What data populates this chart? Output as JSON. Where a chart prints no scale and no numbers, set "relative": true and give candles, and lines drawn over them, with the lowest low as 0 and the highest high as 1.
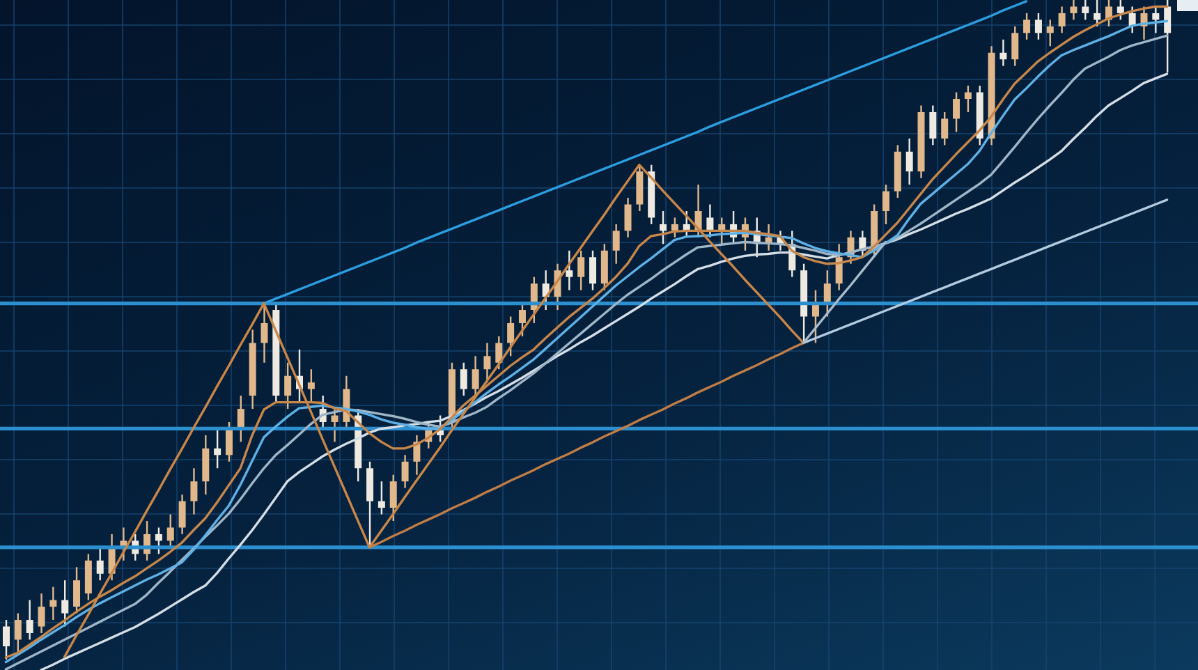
{
  "chart_data": {
    "type": "candlestick",
    "relative": true,
    "tick_labels": false,
    "grid": true,
    "marker": "none",
    "categories": [
      null,
      null,
      null,
      null,
      null,
      null,
      null,
      null,
      null,
      null,
      null,
      null,
      null,
      null,
      null,
      null,
      null,
      null,
      null,
      null,
      null,
      null,
      null,
      null,
      null,
      null,
      null,
      null,
      null,
      null,
      null,
      null,
      null,
      null,
      null,
      null,
      null,
      null,
      null,
      null,
      null,
      null,
      null,
      null,
      null,
      null,
      null,
      null,
      null,
      null,
      null,
      null,
      null,
      null,
      null,
      null,
      null,
      null,
      null,
      null,
      null,
      null,
      null,
      null,
      null,
      null,
      null,
      null,
      null,
      null,
      null,
      null,
      null,
      null,
      null,
      null,
      null,
      null,
      null,
      null,
      null,
      null,
      null,
      null,
      null,
      null,
      null,
      null,
      null,
      null,
      null,
      null,
      null,
      null,
      null,
      null,
      null,
      null,
      null,
      null
    ],
    "ohlc": [
      [
        0.05,
        0.06,
        0.0,
        0.02
      ],
      [
        0.03,
        0.07,
        0.01,
        0.06
      ],
      [
        0.06,
        0.09,
        0.03,
        0.04
      ],
      [
        0.05,
        0.1,
        0.04,
        0.08
      ],
      [
        0.08,
        0.11,
        0.06,
        0.09
      ],
      [
        0.09,
        0.12,
        0.05,
        0.07
      ],
      [
        0.08,
        0.14,
        0.07,
        0.12
      ],
      [
        0.1,
        0.16,
        0.09,
        0.15
      ],
      [
        0.15,
        0.17,
        0.12,
        0.13
      ],
      [
        0.13,
        0.19,
        0.12,
        0.17
      ],
      [
        0.17,
        0.2,
        0.15,
        0.18
      ],
      [
        0.18,
        0.19,
        0.15,
        0.16
      ],
      [
        0.16,
        0.21,
        0.15,
        0.19
      ],
      [
        0.19,
        0.2,
        0.16,
        0.18
      ],
      [
        0.18,
        0.22,
        0.17,
        0.2
      ],
      [
        0.2,
        0.25,
        0.19,
        0.24
      ],
      [
        0.24,
        0.29,
        0.22,
        0.27
      ],
      [
        0.27,
        0.34,
        0.25,
        0.32
      ],
      [
        0.32,
        0.35,
        0.29,
        0.31
      ],
      [
        0.31,
        0.36,
        0.3,
        0.35
      ],
      [
        0.35,
        0.4,
        0.33,
        0.38
      ],
      [
        0.4,
        0.5,
        0.38,
        0.48
      ],
      [
        0.48,
        0.54,
        0.45,
        0.51
      ],
      [
        0.53,
        0.54,
        0.39,
        0.4
      ],
      [
        0.4,
        0.45,
        0.38,
        0.43
      ],
      [
        0.43,
        0.47,
        0.39,
        0.41
      ],
      [
        0.41,
        0.44,
        0.39,
        0.42
      ],
      [
        0.38,
        0.4,
        0.35,
        0.36
      ],
      [
        0.36,
        0.38,
        0.33,
        0.37
      ],
      [
        0.36,
        0.43,
        0.35,
        0.41
      ],
      [
        0.37,
        0.38,
        0.27,
        0.29
      ],
      [
        0.29,
        0.3,
        0.17,
        0.24
      ],
      [
        0.24,
        0.27,
        0.22,
        0.23
      ],
      [
        0.23,
        0.28,
        0.21,
        0.27
      ],
      [
        0.27,
        0.31,
        0.26,
        0.3
      ],
      [
        0.3,
        0.34,
        0.28,
        0.33
      ],
      [
        0.33,
        0.36,
        0.32,
        0.35
      ],
      [
        0.35,
        0.37,
        0.33,
        0.34
      ],
      [
        0.36,
        0.45,
        0.35,
        0.44
      ],
      [
        0.44,
        0.45,
        0.4,
        0.41
      ],
      [
        0.41,
        0.46,
        0.4,
        0.44
      ],
      [
        0.44,
        0.48,
        0.42,
        0.46
      ],
      [
        0.45,
        0.49,
        0.44,
        0.48
      ],
      [
        0.48,
        0.52,
        0.46,
        0.51
      ],
      [
        0.51,
        0.54,
        0.49,
        0.53
      ],
      [
        0.53,
        0.58,
        0.51,
        0.57
      ],
      [
        0.57,
        0.59,
        0.53,
        0.55
      ],
      [
        0.55,
        0.6,
        0.53,
        0.59
      ],
      [
        0.59,
        0.62,
        0.56,
        0.58
      ],
      [
        0.58,
        0.62,
        0.56,
        0.61
      ],
      [
        0.61,
        0.62,
        0.56,
        0.57
      ],
      [
        0.57,
        0.63,
        0.56,
        0.62
      ],
      [
        0.62,
        0.66,
        0.6,
        0.65
      ],
      [
        0.65,
        0.7,
        0.64,
        0.69
      ],
      [
        0.69,
        0.75,
        0.68,
        0.74
      ],
      [
        0.74,
        0.75,
        0.66,
        0.67
      ],
      [
        0.66,
        0.68,
        0.63,
        0.65
      ],
      [
        0.65,
        0.67,
        0.64,
        0.66
      ],
      [
        0.66,
        0.68,
        0.64,
        0.65
      ],
      [
        0.65,
        0.72,
        0.64,
        0.68
      ],
      [
        0.67,
        0.69,
        0.64,
        0.65
      ],
      [
        0.65,
        0.67,
        0.63,
        0.66
      ],
      [
        0.66,
        0.68,
        0.63,
        0.64
      ],
      [
        0.64,
        0.67,
        0.62,
        0.66
      ],
      [
        0.65,
        0.67,
        0.61,
        0.63
      ],
      [
        0.63,
        0.66,
        0.62,
        0.64
      ],
      [
        0.64,
        0.65,
        0.62,
        0.63
      ],
      [
        0.63,
        0.65,
        0.58,
        0.59
      ],
      [
        0.59,
        0.6,
        0.48,
        0.52
      ],
      [
        0.52,
        0.56,
        0.48,
        0.54
      ],
      [
        0.54,
        0.59,
        0.52,
        0.57
      ],
      [
        0.57,
        0.63,
        0.56,
        0.61
      ],
      [
        0.61,
        0.65,
        0.6,
        0.64
      ],
      [
        0.64,
        0.65,
        0.61,
        0.62
      ],
      [
        0.62,
        0.69,
        0.61,
        0.68
      ],
      [
        0.68,
        0.72,
        0.66,
        0.71
      ],
      [
        0.71,
        0.78,
        0.7,
        0.77
      ],
      [
        0.77,
        0.79,
        0.72,
        0.74
      ],
      [
        0.74,
        0.84,
        0.73,
        0.83
      ],
      [
        0.83,
        0.84,
        0.78,
        0.79
      ],
      [
        0.79,
        0.83,
        0.78,
        0.82
      ],
      [
        0.82,
        0.86,
        0.8,
        0.85
      ],
      [
        0.85,
        0.87,
        0.83,
        0.86
      ],
      [
        0.86,
        0.87,
        0.78,
        0.79
      ],
      [
        0.79,
        0.93,
        0.78,
        0.92
      ],
      [
        0.92,
        0.94,
        0.9,
        0.91
      ],
      [
        0.91,
        0.96,
        0.9,
        0.95
      ],
      [
        0.95,
        0.98,
        0.94,
        0.97
      ],
      [
        0.97,
        0.98,
        0.94,
        0.95
      ],
      [
        0.95,
        0.97,
        0.93,
        0.96
      ],
      [
        0.96,
        0.99,
        0.95,
        0.98
      ],
      [
        0.98,
        1.0,
        0.97,
        0.99
      ],
      [
        0.99,
        1.0,
        0.97,
        0.98
      ],
      [
        0.98,
        1.0,
        0.96,
        0.97
      ],
      [
        0.97,
        1.0,
        0.96,
        0.99
      ],
      [
        0.99,
        1.0,
        0.97,
        0.98
      ],
      [
        0.98,
        0.99,
        0.95,
        0.96
      ],
      [
        0.96,
        0.99,
        0.94,
        0.98
      ],
      [
        0.98,
        0.99,
        0.95,
        0.97
      ],
      [
        0.99,
        1.0,
        0.89,
        0.95
      ]
    ],
    "colors": [
      "#eeeae2",
      "#e0b88c",
      "#eeeae2",
      "#e0b88c",
      "#e0b88c",
      "#eeeae2",
      "#e0b88c",
      "#e0b88c",
      "#eeeae2",
      "#e0b88c",
      "#e0b88c",
      "#eeeae2",
      "#e0b88c",
      "#eeeae2",
      "#e0b88c",
      "#e0b88c",
      "#e0b88c",
      "#e0b88c",
      "#eeeae2",
      "#e0b88c",
      "#e0b88c",
      "#e0b88c",
      "#e0b88c",
      "#eeeae2",
      "#e0b88c",
      "#eeeae2",
      "#e0b88c",
      "#eeeae2",
      "#e0b88c",
      "#e0b88c",
      "#eeeae2",
      "#eeeae2",
      "#eeeae2",
      "#e0b88c",
      "#e0b88c",
      "#e0b88c",
      "#e0b88c",
      "#eeeae2",
      "#e0b88c",
      "#eeeae2",
      "#e0b88c",
      "#e0b88c",
      "#e0b88c",
      "#e0b88c",
      "#e0b88c",
      "#e0b88c",
      "#eeeae2",
      "#e0b88c",
      "#eeeae2",
      "#e0b88c",
      "#eeeae2",
      "#e0b88c",
      "#e0b88c",
      "#e0b88c",
      "#e0b88c",
      "#eeeae2",
      "#eeeae2",
      "#e0b88c",
      "#eeeae2",
      "#e0b88c",
      "#eeeae2",
      "#e0b88c",
      "#eeeae2",
      "#e0b88c",
      "#eeeae2",
      "#e0b88c",
      "#eeeae2",
      "#eeeae2",
      "#eeeae2",
      "#e0b88c",
      "#e0b88c",
      "#e0b88c",
      "#e0b88c",
      "#eeeae2",
      "#e0b88c",
      "#e0b88c",
      "#e0b88c",
      "#eeeae2",
      "#e0b88c",
      "#eeeae2",
      "#e0b88c",
      "#e0b88c",
      "#e0b88c",
      "#eeeae2",
      "#e0b88c",
      "#eeeae2",
      "#e0b88c",
      "#e0b88c",
      "#eeeae2",
      "#e0b88c",
      "#e0b88c",
      "#e0b88c",
      "#eeeae2",
      "#eeeae2",
      "#e0b88c",
      "#eeeae2",
      "#eeeae2",
      "#e0b88c",
      "#eeeae2",
      "#eeeae2"
    ],
    "series": [
      {
        "type": "line",
        "color": "#d5dee6",
        "values": [
          null,
          null,
          null,
          -0.016,
          -0.008,
          0.001,
          0.009,
          0.017,
          0.025,
          0.033,
          0.041,
          0.049,
          0.059,
          0.069,
          0.08,
          0.091,
          0.102,
          0.112,
          0.131,
          0.153,
          0.174,
          0.196,
          0.22,
          0.245,
          0.27,
          0.284,
          0.296,
          0.308,
          0.318,
          0.327,
          0.335,
          0.344,
          0.35,
          0.352,
          0.355,
          0.357,
          0.36,
          0.362,
          0.369,
          0.378,
          0.388,
          0.398,
          0.407,
          0.417,
          0.427,
          0.438,
          0.449,
          0.46,
          0.47,
          0.481,
          0.491,
          0.502,
          0.513,
          0.524,
          0.535,
          0.547,
          0.558,
          0.569,
          0.581,
          0.592,
          0.597,
          0.603,
          0.608,
          0.612,
          0.614,
          0.615,
          0.617,
          0.617,
          0.614,
          0.611,
          0.608,
          0.613,
          0.617,
          0.622,
          0.626,
          0.631,
          0.637,
          0.645,
          0.652,
          0.66,
          0.668,
          0.676,
          0.683,
          0.691,
          0.699,
          0.711,
          0.723,
          0.734,
          0.746,
          0.758,
          0.771,
          0.789,
          0.806,
          0.824,
          0.84,
          0.851,
          0.862,
          0.874,
          0.881,
          0.888
        ]
      },
      {
        "type": "line",
        "color": "#9fb6c8",
        "values": [
          -0.015,
          -0.006,
          0.003,
          0.012,
          0.021,
          0.03,
          0.039,
          0.048,
          0.057,
          0.066,
          0.075,
          0.084,
          0.098,
          0.116,
          0.133,
          0.151,
          0.168,
          0.186,
          0.203,
          0.221,
          0.243,
          0.267,
          0.29,
          0.31,
          0.325,
          0.341,
          0.357,
          0.371,
          0.375,
          0.379,
          0.378,
          0.375,
          0.372,
          0.369,
          0.365,
          0.36,
          0.356,
          0.353,
          0.359,
          0.367,
          0.374,
          0.383,
          0.396,
          0.408,
          0.421,
          0.434,
          0.449,
          0.464,
          0.479,
          0.494,
          0.509,
          0.524,
          0.539,
          0.553,
          0.565,
          0.577,
          0.59,
          0.602,
          0.614,
          0.625,
          0.627,
          0.629,
          0.631,
          0.633,
          0.632,
          0.631,
          0.63,
          0.628,
          0.624,
          0.62,
          0.615,
          0.613,
          0.617,
          0.622,
          0.626,
          0.631,
          0.639,
          0.65,
          0.661,
          0.673,
          0.685,
          0.697,
          0.709,
          0.721,
          0.735,
          0.756,
          0.777,
          0.799,
          0.82,
          0.84,
          0.859,
          0.879,
          0.896,
          0.905,
          0.914,
          0.924,
          0.931,
          0.936,
          0.941,
          0.946
        ]
      },
      {
        "type": "line",
        "color": "#5eb1e6",
        "values": [
          -0.004,
          0.007,
          0.018,
          0.03,
          0.041,
          0.052,
          0.064,
          0.075,
          0.085,
          0.094,
          0.103,
          0.112,
          0.121,
          0.129,
          0.138,
          0.147,
          0.166,
          0.188,
          0.211,
          0.233,
          0.265,
          0.301,
          0.337,
          0.353,
          0.368,
          0.381,
          0.383,
          0.385,
          0.382,
          0.38,
          0.376,
          0.371,
          0.364,
          0.359,
          0.356,
          0.352,
          0.35,
          0.35,
          0.363,
          0.376,
          0.39,
          0.404,
          0.417,
          0.429,
          0.442,
          0.455,
          0.471,
          0.487,
          0.503,
          0.519,
          0.535,
          0.551,
          0.567,
          0.581,
          0.595,
          0.608,
          0.622,
          0.636,
          0.641,
          0.642,
          0.643,
          0.645,
          0.646,
          0.647,
          0.645,
          0.643,
          0.641,
          0.639,
          0.631,
          0.624,
          0.619,
          0.616,
          0.613,
          0.61,
          0.62,
          0.631,
          0.643,
          0.668,
          0.691,
          0.706,
          0.721,
          0.736,
          0.751,
          0.771,
          0.798,
          0.824,
          0.849,
          0.866,
          0.884,
          0.901,
          0.916,
          0.924,
          0.931,
          0.938,
          0.945,
          0.953,
          0.961,
          0.964,
          0.966,
          0.968
        ]
      },
      {
        "type": "line",
        "color": "#c7864a",
        "values": [
          0.003,
          0.01,
          0.022,
          0.034,
          0.047,
          0.059,
          0.072,
          0.084,
          0.095,
          0.105,
          0.116,
          0.126,
          0.138,
          0.15,
          0.163,
          0.177,
          0.196,
          0.214,
          0.238,
          0.264,
          0.29,
          0.34,
          0.379,
          0.39,
          0.39,
          0.39,
          0.39,
          0.389,
          0.381,
          0.377,
          0.36,
          0.343,
          0.33,
          0.32,
          0.32,
          0.326,
          0.336,
          0.349,
          0.367,
          0.385,
          0.4,
          0.415,
          0.43,
          0.445,
          0.458,
          0.47,
          0.487,
          0.503,
          0.519,
          0.533,
          0.547,
          0.563,
          0.58,
          0.6,
          0.627,
          0.642,
          0.645,
          0.649,
          0.65,
          0.65,
          0.65,
          0.65,
          0.65,
          0.65,
          0.647,
          0.645,
          0.642,
          0.62,
          0.61,
          0.604,
          0.6,
          0.601,
          0.605,
          0.61,
          0.626,
          0.644,
          0.662,
          0.684,
          0.706,
          0.728,
          0.747,
          0.766,
          0.784,
          0.802,
          0.823,
          0.849,
          0.873,
          0.89,
          0.907,
          0.92,
          0.932,
          0.944,
          0.954,
          0.963,
          0.972,
          0.978,
          0.983,
          0.987,
          0.99,
          0.99
        ]
      },
      {
        "type": "line",
        "color": "#2b9ee0",
        "values": [
          null,
          null,
          null,
          null,
          null,
          null,
          null,
          null,
          null,
          null,
          null,
          null,
          null,
          null,
          null,
          null,
          null,
          null,
          null,
          null,
          null,
          null,
          0.54,
          0.547,
          0.554,
          0.561,
          0.568,
          0.575,
          0.582,
          0.589,
          0.596,
          0.603,
          0.61,
          0.617,
          0.624,
          0.632,
          0.639,
          0.646,
          0.653,
          0.66,
          0.667,
          0.674,
          0.681,
          0.688,
          0.695,
          0.702,
          0.709,
          0.716,
          0.723,
          0.73,
          0.737,
          0.744,
          0.751,
          0.758,
          0.765,
          0.772,
          0.779,
          0.786,
          0.793,
          0.8,
          0.808,
          0.815,
          0.822,
          0.829,
          0.836,
          0.843,
          0.85,
          0.857,
          0.864,
          0.871,
          0.878,
          0.885,
          0.892,
          0.899,
          0.906,
          0.913,
          0.92,
          0.927,
          0.934,
          0.941,
          0.948,
          0.955,
          0.962,
          0.969,
          0.976,
          0.984,
          0.991,
          0.998,
          null,
          null,
          null,
          null,
          null,
          null,
          null,
          null,
          null,
          null,
          null,
          null
        ]
      },
      {
        "type": "line",
        "color": "#c07d45",
        "values": [
          null,
          null,
          null,
          null,
          null,
          null,
          null,
          null,
          null,
          null,
          null,
          null,
          null,
          null,
          null,
          null,
          null,
          null,
          null,
          null,
          null,
          null,
          null,
          null,
          null,
          null,
          null,
          null,
          null,
          null,
          null,
          0.17,
          0.178,
          0.187,
          0.195,
          0.204,
          0.212,
          0.22,
          0.229,
          0.237,
          0.245,
          0.254,
          0.262,
          0.271,
          0.279,
          0.287,
          0.296,
          0.304,
          0.312,
          0.321,
          0.329,
          0.338,
          0.346,
          0.354,
          0.363,
          0.371,
          0.379,
          0.388,
          0.396,
          0.405,
          0.413,
          0.421,
          0.43,
          0.438,
          0.446,
          0.455,
          0.463,
          0.472,
          0.48,
          null,
          null,
          null,
          null,
          null,
          null,
          null,
          null,
          null,
          null,
          null,
          null,
          null,
          null,
          null,
          null,
          null,
          null,
          null,
          null,
          null,
          null,
          null,
          null,
          null,
          null,
          null,
          null,
          null,
          null,
          null
        ]
      },
      {
        "type": "line",
        "color": "#b3cbe0",
        "values": [
          null,
          null,
          null,
          null,
          null,
          null,
          null,
          null,
          null,
          null,
          null,
          null,
          null,
          null,
          null,
          null,
          null,
          null,
          null,
          null,
          null,
          null,
          null,
          null,
          null,
          null,
          null,
          null,
          null,
          null,
          null,
          null,
          null,
          null,
          null,
          null,
          null,
          null,
          null,
          null,
          null,
          null,
          null,
          null,
          null,
          null,
          null,
          null,
          null,
          null,
          null,
          null,
          null,
          null,
          null,
          null,
          null,
          null,
          null,
          null,
          null,
          null,
          null,
          null,
          null,
          null,
          null,
          null,
          0.48,
          0.487,
          0.494,
          0.501,
          0.508,
          0.515,
          0.522,
          0.529,
          0.536,
          0.543,
          0.55,
          0.557,
          0.564,
          0.571,
          0.578,
          0.585,
          0.592,
          0.599,
          0.606,
          0.613,
          0.62,
          0.627,
          0.634,
          0.641,
          0.648,
          0.655,
          0.662,
          0.669,
          0.676,
          0.683,
          0.69,
          0.697
        ]
      },
      {
        "type": "line",
        "color": "#c98647",
        "values": [
          null,
          null,
          null,
          null,
          null,
          0.004,
          0.036,
          0.067,
          0.099,
          0.13,
          0.162,
          0.193,
          0.225,
          0.256,
          0.288,
          0.319,
          0.351,
          0.382,
          0.414,
          0.445,
          0.477,
          0.508,
          0.54,
          0.499,
          0.458,
          0.417,
          0.376,
          0.334,
          0.293,
          0.252,
          0.211,
          0.17,
          0.195,
          0.22,
          0.246,
          0.271,
          0.296,
          0.321,
          0.347,
          0.372,
          0.397,
          0.422,
          0.447,
          0.473,
          0.498,
          0.523,
          0.548,
          0.573,
          0.599,
          0.624,
          0.649,
          0.674,
          0.7,
          0.725,
          0.75,
          0.731,
          0.711,
          0.692,
          0.673,
          0.654,
          0.634,
          0.615,
          0.596,
          0.576,
          0.557,
          0.538,
          0.519,
          0.499,
          0.48,
          null,
          null,
          null,
          null,
          null,
          null,
          null,
          null,
          null,
          null,
          null,
          null,
          null,
          null,
          null,
          null,
          null,
          null,
          null,
          null,
          null,
          null,
          null,
          null,
          null,
          null,
          null,
          null,
          null,
          null,
          null
        ]
      },
      {
        "type": "line",
        "color": "#a8bccb",
        "values": [
          null,
          null,
          null,
          null,
          null,
          null,
          null,
          null,
          null,
          null,
          null,
          null,
          null,
          null,
          null,
          null,
          null,
          null,
          null,
          null,
          null,
          null,
          null,
          null,
          null,
          null,
          null,
          null,
          null,
          null,
          null,
          null,
          null,
          null,
          null,
          null,
          null,
          null,
          null,
          null,
          null,
          null,
          null,
          null,
          null,
          null,
          null,
          null,
          null,
          null,
          null,
          null,
          null,
          null,
          null,
          null,
          null,
          null,
          null,
          null,
          null,
          null,
          null,
          null,
          null,
          null,
          null,
          null,
          0.48,
          0.502,
          0.524,
          0.546,
          0.567,
          0.589,
          0.611,
          0.633,
          null,
          null,
          null,
          null,
          null,
          null,
          null,
          null,
          null,
          null,
          null,
          null,
          null,
          null,
          null,
          null,
          null,
          null,
          null,
          null,
          null,
          null,
          null,
          null
        ]
      }
    ],
    "ref_lines": [
      {
        "axis": "y",
        "value": 0.54,
        "color": "#2c8fd0"
      },
      {
        "axis": "y",
        "value": 0.35,
        "color": "#2c8fd0"
      },
      {
        "axis": "y",
        "value": 0.17,
        "color": "#2c8fd0"
      }
    ]
  }
}
